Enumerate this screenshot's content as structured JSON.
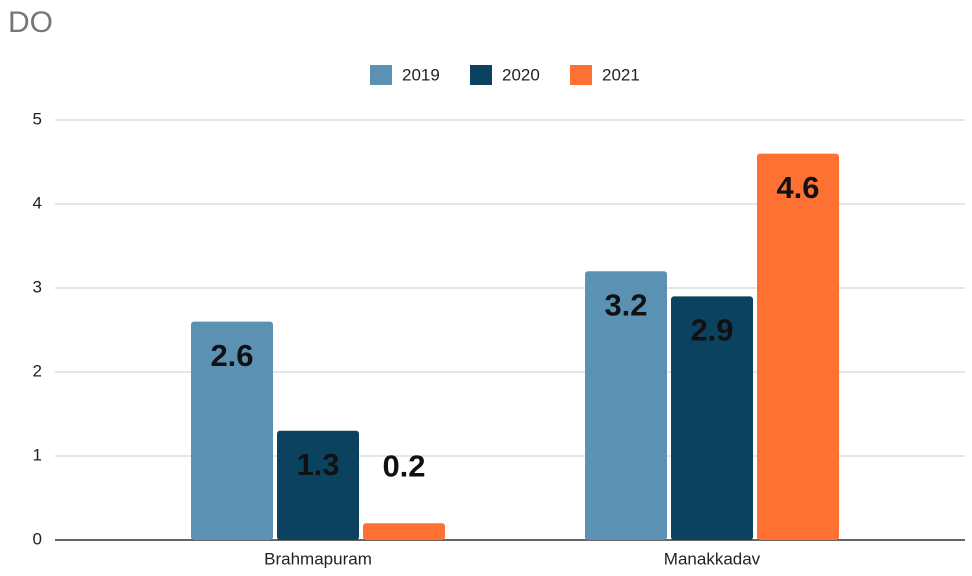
{
  "chart_data": {
    "type": "bar",
    "title": "DO",
    "categories": [
      "Brahmapuram",
      "Manakkadav"
    ],
    "series": [
      {
        "name": "2019",
        "color": "#5b91b3",
        "values": [
          2.6,
          3.2
        ]
      },
      {
        "name": "2020",
        "color": "#0b425f",
        "values": [
          1.3,
          2.9
        ]
      },
      {
        "name": "2021",
        "color": "#ff7033",
        "values": [
          0.2,
          4.6
        ]
      }
    ],
    "ylim": [
      0,
      5
    ],
    "yticks": [
      0,
      1,
      2,
      3,
      4,
      5
    ],
    "grid": true,
    "legend": "top",
    "data_labels": true
  }
}
